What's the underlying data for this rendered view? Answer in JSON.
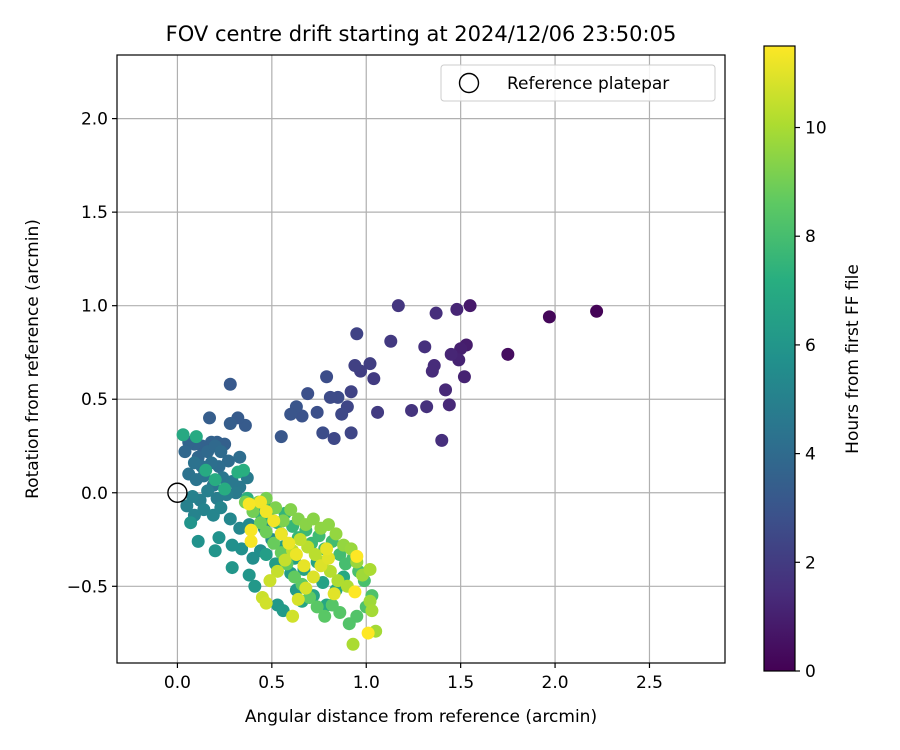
{
  "chart_data": {
    "type": "scatter",
    "title": "FOV centre drift starting at 2024/12/06 23:50:05",
    "xlabel": "Angular distance from reference (arcmin)",
    "ylabel": "Rotation from reference (arcmin)",
    "xlim": [
      -0.32,
      2.9
    ],
    "ylim": [
      -0.91,
      2.34
    ],
    "xticks": [
      0.0,
      0.5,
      1.0,
      1.5,
      2.0,
      2.5
    ],
    "xtick_labels": [
      "0.0",
      "0.5",
      "1.0",
      "1.5",
      "2.0",
      "2.5"
    ],
    "yticks": [
      -0.5,
      0.0,
      0.5,
      1.0,
      1.5,
      2.0
    ],
    "ytick_labels": [
      "−0.5",
      "0.0",
      "0.5",
      "1.0",
      "1.5",
      "2.0"
    ],
    "grid": true,
    "legend": {
      "position": "top-right",
      "entries": [
        "Reference platepar"
      ]
    },
    "reference_point": {
      "x": 0.0,
      "y": 0.0
    },
    "colorbar": {
      "label": "Hours from first FF file",
      "colormap": "viridis",
      "range": [
        0,
        11.5
      ],
      "ticks": [
        0,
        2,
        4,
        6,
        8,
        10
      ],
      "tick_labels": [
        "0",
        "2",
        "4",
        "6",
        "8",
        "10"
      ]
    },
    "series": [
      {
        "points": [
          [
            2.22,
            0.97,
            0.1
          ],
          [
            1.97,
            0.94,
            0.2
          ],
          [
            1.75,
            0.74,
            0.4
          ],
          [
            1.55,
            1.0,
            0.8
          ],
          [
            1.53,
            0.79,
            0.9
          ],
          [
            1.5,
            0.77,
            1.0
          ],
          [
            1.49,
            0.71,
            1.1
          ],
          [
            1.52,
            0.62,
            1.1
          ],
          [
            1.48,
            0.98,
            1.2
          ],
          [
            1.45,
            0.74,
            1.2
          ],
          [
            1.44,
            0.47,
            1.3
          ],
          [
            1.42,
            0.55,
            1.3
          ],
          [
            1.36,
            0.68,
            1.4
          ],
          [
            1.35,
            0.65,
            1.4
          ],
          [
            1.37,
            0.96,
            1.5
          ],
          [
            1.4,
            0.28,
            1.5
          ],
          [
            1.31,
            0.78,
            1.6
          ],
          [
            1.32,
            0.46,
            1.6
          ],
          [
            1.24,
            0.44,
            1.7
          ],
          [
            1.17,
            1.0,
            1.8
          ],
          [
            1.13,
            0.81,
            1.9
          ],
          [
            1.06,
            0.43,
            2.0
          ],
          [
            1.04,
            0.61,
            2.0
          ],
          [
            1.02,
            0.69,
            2.1
          ],
          [
            0.97,
            0.65,
            2.1
          ],
          [
            0.94,
            0.68,
            2.2
          ],
          [
            0.95,
            0.85,
            2.3
          ],
          [
            0.92,
            0.54,
            2.3
          ],
          [
            0.92,
            0.32,
            2.4
          ],
          [
            0.9,
            0.46,
            2.4
          ],
          [
            0.87,
            0.42,
            2.5
          ],
          [
            0.83,
            0.29,
            2.5
          ],
          [
            0.85,
            0.51,
            2.6
          ],
          [
            0.81,
            0.51,
            2.6
          ],
          [
            0.79,
            0.62,
            2.7
          ],
          [
            0.77,
            0.32,
            2.7
          ],
          [
            0.74,
            0.43,
            2.8
          ],
          [
            0.69,
            0.53,
            2.8
          ],
          [
            0.66,
            0.41,
            2.9
          ],
          [
            0.63,
            0.46,
            3.0
          ],
          [
            0.6,
            0.42,
            3.0
          ],
          [
            0.55,
            0.3,
            3.1
          ],
          [
            0.28,
            0.58,
            3.2
          ],
          [
            0.36,
            0.36,
            3.3
          ],
          [
            0.32,
            0.4,
            3.3
          ],
          [
            0.28,
            0.37,
            3.4
          ],
          [
            0.17,
            0.4,
            3.4
          ],
          [
            0.25,
            0.26,
            3.5
          ],
          [
            0.21,
            0.27,
            3.5
          ],
          [
            0.18,
            0.27,
            3.6
          ],
          [
            0.13,
            0.25,
            3.6
          ],
          [
            0.09,
            0.26,
            3.7
          ],
          [
            0.06,
            0.27,
            3.7
          ],
          [
            0.04,
            0.22,
            3.8
          ],
          [
            0.11,
            0.19,
            3.8
          ],
          [
            0.16,
            0.22,
            3.9
          ],
          [
            0.2,
            0.25,
            3.9
          ],
          [
            0.23,
            0.22,
            4.0
          ],
          [
            0.27,
            0.17,
            4.0
          ],
          [
            0.33,
            0.19,
            4.1
          ],
          [
            0.22,
            0.14,
            4.1
          ],
          [
            0.18,
            0.16,
            4.2
          ],
          [
            0.13,
            0.14,
            4.2
          ],
          [
            0.09,
            0.16,
            4.3
          ],
          [
            0.06,
            0.1,
            4.3
          ],
          [
            0.1,
            0.07,
            4.4
          ],
          [
            0.14,
            0.09,
            4.4
          ],
          [
            0.19,
            0.04,
            4.5
          ],
          [
            0.24,
            0.08,
            4.5
          ],
          [
            0.29,
            0.06,
            4.6
          ],
          [
            0.33,
            0.03,
            4.6
          ],
          [
            0.37,
            0.08,
            4.7
          ],
          [
            0.31,
            0.0,
            4.7
          ],
          [
            0.26,
            -0.01,
            4.8
          ],
          [
            0.21,
            -0.03,
            4.8
          ],
          [
            0.16,
            0.01,
            4.9
          ],
          [
            0.12,
            -0.04,
            4.9
          ],
          [
            0.08,
            -0.02,
            5.0
          ],
          [
            0.05,
            -0.07,
            5.0
          ],
          [
            0.09,
            -0.12,
            5.1
          ],
          [
            0.14,
            -0.09,
            5.1
          ],
          [
            0.19,
            -0.12,
            5.2
          ],
          [
            0.23,
            -0.08,
            5.2
          ],
          [
            0.28,
            -0.14,
            5.3
          ],
          [
            0.33,
            -0.19,
            5.3
          ],
          [
            0.38,
            -0.17,
            5.4
          ],
          [
            0.42,
            -0.1,
            5.4
          ],
          [
            0.46,
            -0.19,
            5.5
          ],
          [
            0.5,
            -0.25,
            5.5
          ],
          [
            0.55,
            -0.22,
            5.5
          ],
          [
            0.44,
            -0.31,
            5.6
          ],
          [
            0.4,
            -0.35,
            5.6
          ],
          [
            0.34,
            -0.3,
            5.7
          ],
          [
            0.29,
            -0.28,
            5.7
          ],
          [
            0.22,
            -0.24,
            5.8
          ],
          [
            0.11,
            -0.26,
            5.8
          ],
          [
            0.07,
            -0.16,
            5.9
          ],
          [
            0.2,
            -0.31,
            5.9
          ],
          [
            0.29,
            -0.4,
            6.0
          ],
          [
            0.38,
            -0.44,
            6.0
          ],
          [
            0.41,
            -0.5,
            6.1
          ],
          [
            0.53,
            -0.6,
            6.1
          ],
          [
            0.56,
            -0.63,
            6.2
          ],
          [
            0.63,
            -0.52,
            6.2
          ],
          [
            0.6,
            -0.43,
            6.3
          ],
          [
            0.52,
            -0.38,
            6.3
          ],
          [
            0.47,
            -0.33,
            6.4
          ],
          [
            0.56,
            -0.29,
            6.4
          ],
          [
            0.62,
            -0.35,
            6.5
          ],
          [
            0.67,
            -0.41,
            6.5
          ],
          [
            0.74,
            -0.37,
            6.6
          ],
          [
            0.77,
            -0.48,
            6.6
          ],
          [
            0.72,
            -0.55,
            6.7
          ],
          [
            0.66,
            -0.58,
            6.7
          ],
          [
            0.79,
            -0.6,
            6.8
          ],
          [
            0.84,
            -0.52,
            6.8
          ],
          [
            0.88,
            -0.45,
            6.9
          ],
          [
            0.03,
            0.31,
            6.9
          ],
          [
            0.1,
            0.3,
            7.0
          ],
          [
            0.15,
            0.12,
            7.0
          ],
          [
            0.2,
            0.07,
            7.1
          ],
          [
            0.25,
            0.02,
            7.1
          ],
          [
            0.32,
            0.11,
            7.2
          ],
          [
            0.35,
            0.12,
            7.2
          ],
          [
            0.37,
            -0.03,
            7.3
          ],
          [
            0.41,
            -0.07,
            7.3
          ],
          [
            0.45,
            -0.14,
            7.4
          ],
          [
            0.49,
            -0.09,
            7.4
          ],
          [
            0.53,
            -0.16,
            7.5
          ],
          [
            0.57,
            -0.11,
            7.5
          ],
          [
            0.61,
            -0.18,
            7.6
          ],
          [
            0.64,
            -0.24,
            7.6
          ],
          [
            0.68,
            -0.2,
            7.7
          ],
          [
            0.71,
            -0.27,
            7.7
          ],
          [
            0.75,
            -0.23,
            7.8
          ],
          [
            0.78,
            -0.3,
            7.8
          ],
          [
            0.82,
            -0.26,
            7.9
          ],
          [
            0.86,
            -0.33,
            7.9
          ],
          [
            0.89,
            -0.38,
            8.0
          ],
          [
            0.93,
            -0.35,
            8.0
          ],
          [
            0.96,
            -0.42,
            8.1
          ],
          [
            0.99,
            -0.47,
            8.1
          ],
          [
            1.03,
            -0.55,
            8.2
          ],
          [
            1.0,
            -0.61,
            8.2
          ],
          [
            0.95,
            -0.66,
            8.3
          ],
          [
            0.91,
            -0.7,
            8.3
          ],
          [
            0.86,
            -0.64,
            8.4
          ],
          [
            0.82,
            -0.6,
            8.4
          ],
          [
            0.78,
            -0.66,
            8.5
          ],
          [
            0.74,
            -0.61,
            8.5
          ],
          [
            0.7,
            -0.56,
            8.6
          ],
          [
            0.66,
            -0.49,
            8.6
          ],
          [
            0.62,
            -0.45,
            8.7
          ],
          [
            0.58,
            -0.38,
            8.7
          ],
          [
            0.55,
            -0.32,
            8.8
          ],
          [
            0.51,
            -0.27,
            8.8
          ],
          [
            0.47,
            -0.21,
            8.9
          ],
          [
            0.44,
            -0.16,
            8.9
          ],
          [
            0.4,
            -0.1,
            9.0
          ],
          [
            0.36,
            -0.05,
            9.0
          ],
          [
            0.43,
            -0.05,
            9.1
          ],
          [
            0.47,
            -0.03,
            9.1
          ],
          [
            0.52,
            -0.08,
            9.2
          ],
          [
            0.56,
            -0.15,
            9.2
          ],
          [
            0.6,
            -0.09,
            9.3
          ],
          [
            0.64,
            -0.14,
            9.3
          ],
          [
            0.68,
            -0.17,
            9.4
          ],
          [
            0.72,
            -0.14,
            9.4
          ],
          [
            0.76,
            -0.19,
            9.5
          ],
          [
            0.8,
            -0.17,
            9.5
          ],
          [
            0.84,
            -0.22,
            9.6
          ],
          [
            0.88,
            -0.28,
            9.6
          ],
          [
            0.92,
            -0.3,
            9.7
          ],
          [
            0.95,
            -0.37,
            9.7
          ],
          [
            0.98,
            -0.44,
            9.8
          ],
          [
            1.02,
            -0.58,
            9.8
          ],
          [
            1.03,
            -0.63,
            9.9
          ],
          [
            1.05,
            -0.74,
            9.9
          ],
          [
            1.02,
            -0.41,
            10.0
          ],
          [
            0.93,
            -0.81,
            10.0
          ],
          [
            0.9,
            -0.5,
            10.1
          ],
          [
            0.85,
            -0.47,
            10.1
          ],
          [
            0.81,
            -0.42,
            10.2
          ],
          [
            0.77,
            -0.37,
            10.2
          ],
          [
            0.73,
            -0.33,
            10.3
          ],
          [
            0.69,
            -0.29,
            10.3
          ],
          [
            0.65,
            -0.25,
            10.4
          ],
          [
            0.61,
            -0.31,
            10.4
          ],
          [
            0.57,
            -0.36,
            10.5
          ],
          [
            0.53,
            -0.42,
            10.5
          ],
          [
            0.49,
            -0.47,
            10.6
          ],
          [
            0.45,
            -0.56,
            10.6
          ],
          [
            0.47,
            -0.59,
            10.7
          ],
          [
            0.61,
            -0.66,
            10.7
          ],
          [
            0.64,
            -0.57,
            10.8
          ],
          [
            0.68,
            -0.51,
            10.8
          ],
          [
            0.72,
            -0.45,
            10.9
          ],
          [
            0.76,
            -0.39,
            10.9
          ],
          [
            0.8,
            -0.35,
            11.0
          ],
          [
            0.83,
            -0.54,
            11.0
          ],
          [
            0.79,
            -0.3,
            11.1
          ],
          [
            0.67,
            -0.39,
            11.1
          ],
          [
            0.63,
            -0.33,
            11.2
          ],
          [
            0.59,
            -0.27,
            11.2
          ],
          [
            0.55,
            -0.22,
            11.2
          ],
          [
            0.51,
            -0.15,
            11.3
          ],
          [
            0.47,
            -0.1,
            11.3
          ],
          [
            0.44,
            -0.05,
            11.3
          ],
          [
            0.38,
            -0.06,
            11.4
          ],
          [
            0.39,
            -0.2,
            11.4
          ],
          [
            0.39,
            -0.26,
            11.4
          ],
          [
            0.95,
            -0.34,
            11.5
          ],
          [
            0.94,
            -0.53,
            11.5
          ],
          [
            1.01,
            -0.75,
            11.5
          ]
        ]
      }
    ]
  }
}
